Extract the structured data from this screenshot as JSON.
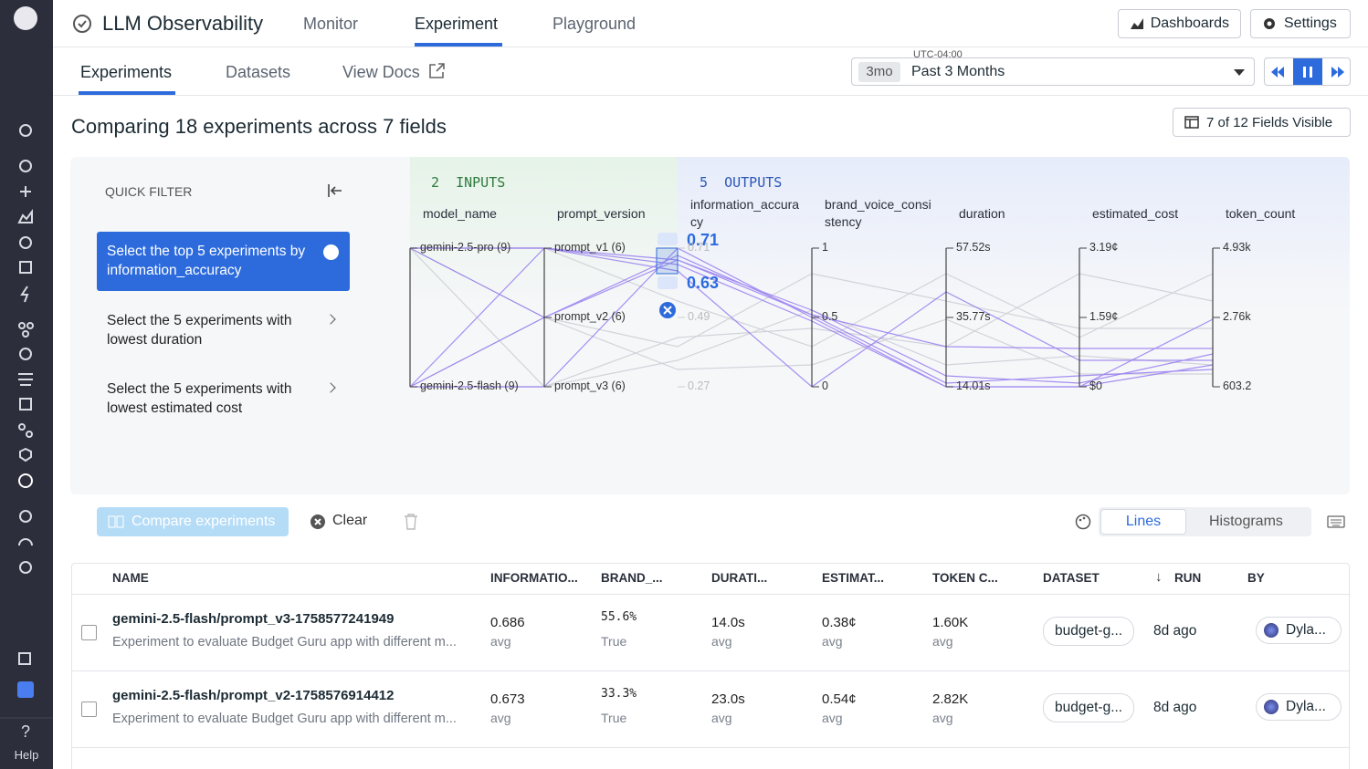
{
  "sidebar": {
    "help": "Help"
  },
  "header": {
    "title": "LLM Observability",
    "tabs": [
      "Monitor",
      "Experiment",
      "Playground"
    ],
    "buttons": [
      "Dashboards",
      "Settings"
    ]
  },
  "subnav": {
    "tabs": [
      "Experiments",
      "Datasets",
      "View Docs"
    ],
    "timezone": "UTC-04:00",
    "range_badge": "3mo",
    "range": "Past 3 Months"
  },
  "heading": "Comparing 18 experiments across 7 fields",
  "fields_button": "7 of 12 Fields Visible",
  "quick_filter": {
    "title": "QUICK FILTER",
    "options": [
      "Select the top 5 experiments by information_accuracy",
      "Select the 5 experiments with lowest duration",
      "Select the 5 experiments with lowest estimated cost"
    ]
  },
  "chart": {
    "inputs_label": "2  INPUTS",
    "outputs_label": "5  OUTPUTS",
    "axes": [
      {
        "name": "model_name",
        "ticks": [
          "gemini-2.5-pro (9)",
          "gemini-2.5-flash (9)"
        ]
      },
      {
        "name": "prompt_version",
        "ticks": [
          "prompt_v1 (6)",
          "prompt_v2 (6)",
          "prompt_v3 (6)"
        ]
      },
      {
        "name": "information_accuracy",
        "ticks": [
          "0.71",
          "0.49",
          "0.27"
        ]
      },
      {
        "name": "brand_voice_consistency",
        "ticks": [
          "1",
          "0.5",
          "0"
        ]
      },
      {
        "name": "duration",
        "ticks": [
          "57.52s",
          "35.77s",
          "14.01s"
        ]
      },
      {
        "name": "estimated_cost",
        "ticks": [
          "3.19¢",
          "1.59¢",
          "$0"
        ]
      },
      {
        "name": "token_count",
        "ticks": [
          "4.93k",
          "2.76k",
          "603.2"
        ]
      }
    ],
    "brush": {
      "high": "0.71",
      "low": "0.63"
    }
  },
  "toolbar": {
    "compare": "Compare experiments",
    "clear": "Clear",
    "views": [
      "Lines",
      "Histograms"
    ]
  },
  "table": {
    "columns": [
      "NAME",
      "INFORMATIO...",
      "BRAND_...",
      "DURATI...",
      "ESTIMAT...",
      "TOKEN C...",
      "DATASET",
      "RUN",
      "BY"
    ],
    "rows": [
      {
        "name": "gemini-2.5-flash/prompt_v3-1758577241949",
        "description": "Experiment to evaluate Budget Guru app with different m...",
        "cells": [
          [
            "0.686",
            "avg"
          ],
          [
            "55.6%",
            "True"
          ],
          [
            "14.0s",
            "avg"
          ],
          [
            "0.38¢",
            "avg"
          ],
          [
            "1.60K",
            "avg"
          ]
        ],
        "dataset": "budget-g...",
        "run": "8d ago",
        "by": "Dyla..."
      },
      {
        "name": "gemini-2.5-flash/prompt_v2-1758576914412",
        "description": "Experiment to evaluate Budget Guru app with different m...",
        "cells": [
          [
            "0.673",
            "avg"
          ],
          [
            "33.3%",
            "True"
          ],
          [
            "23.0s",
            "avg"
          ],
          [
            "0.54¢",
            "avg"
          ],
          [
            "2.82K",
            "avg"
          ]
        ],
        "dataset": "budget-g...",
        "run": "8d ago",
        "by": "Dyla..."
      }
    ]
  }
}
